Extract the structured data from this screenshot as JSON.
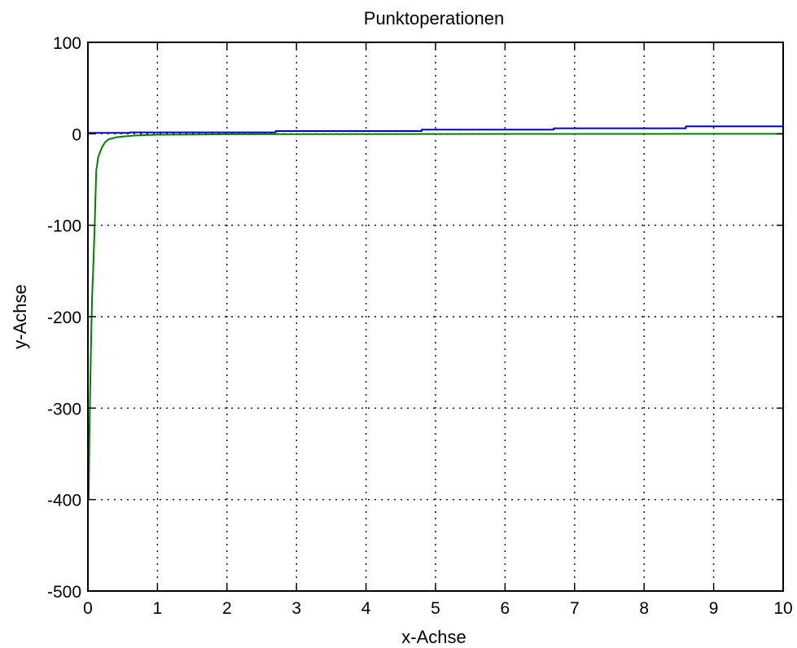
{
  "chart_data": {
    "type": "line",
    "title": "Punktoperationen",
    "xlabel": "x-Achse",
    "ylabel": "y-Achse",
    "xlim": [
      0,
      10
    ],
    "ylim": [
      -500,
      100
    ],
    "xticks": [
      0,
      1,
      2,
      3,
      4,
      5,
      6,
      7,
      8,
      9,
      10
    ],
    "yticks": [
      100,
      0,
      -100,
      -200,
      -300,
      -400,
      -500
    ],
    "grid": true,
    "colors": {
      "series_blue": "#0000cc",
      "series_green": "#008000",
      "grid": "#000000"
    },
    "series": [
      {
        "color": "#0000cc",
        "x": [
          0,
          0.6,
          0.6,
          2.7,
          2.7,
          4.8,
          4.8,
          6.7,
          6.7,
          8.6,
          8.6,
          10
        ],
        "y": [
          1,
          1,
          1.5,
          1.5,
          3,
          3,
          4.5,
          4.5,
          6,
          6,
          8,
          8
        ]
      },
      {
        "color": "#008000",
        "x": [
          0.01,
          0.02,
          0.03,
          0.04,
          0.05,
          0.06,
          0.08,
          0.1,
          0.12,
          0.15,
          0.2,
          0.25,
          0.3,
          0.4,
          0.5,
          0.65,
          0.8,
          1,
          2,
          5,
          10
        ],
        "y": [
          -400,
          -340,
          -290,
          -250,
          -210,
          -180,
          -140,
          -95,
          -40,
          -25,
          -15,
          -9,
          -6,
          -4,
          -3,
          -2,
          -1.5,
          -1,
          -0.5,
          -0.2,
          -0.1
        ]
      }
    ]
  }
}
